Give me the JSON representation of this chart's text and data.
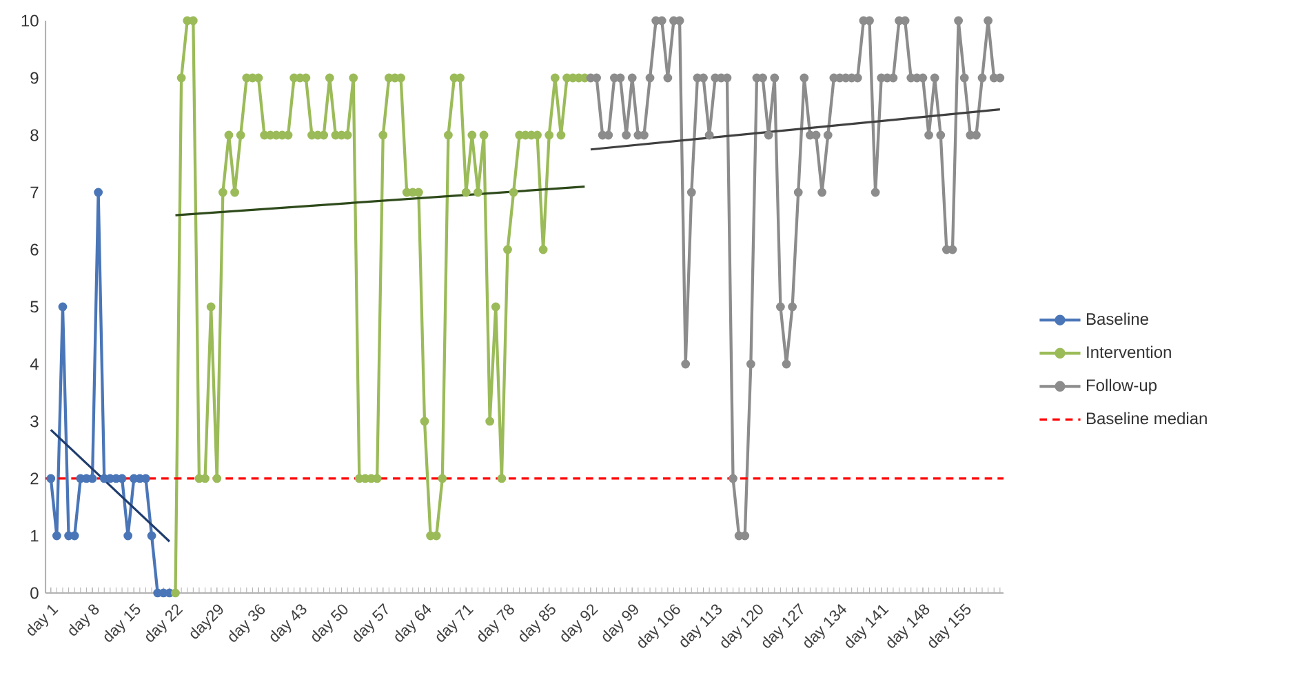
{
  "chart_data": {
    "type": "line",
    "categories": [
      "day 1",
      null,
      null,
      null,
      null,
      null,
      null,
      "day 8",
      null,
      null,
      null,
      null,
      null,
      null,
      "day 15",
      null,
      null,
      null,
      null,
      null,
      null,
      "day 22",
      null,
      null,
      null,
      null,
      null,
      null,
      "day29",
      null,
      null,
      null,
      null,
      null,
      null,
      "day 36",
      null,
      null,
      null,
      null,
      null,
      null,
      "day 43",
      null,
      null,
      null,
      null,
      null,
      null,
      "day 50",
      null,
      null,
      null,
      null,
      null,
      null,
      "day 57",
      null,
      null,
      null,
      null,
      null,
      null,
      "day 64",
      null,
      null,
      null,
      null,
      null,
      null,
      "day 71",
      null,
      null,
      null,
      null,
      null,
      null,
      "day 78",
      null,
      null,
      null,
      null,
      null,
      null,
      "day 85",
      null,
      null,
      null,
      null,
      null,
      null,
      "day 92",
      null,
      null,
      null,
      null,
      null,
      null,
      "day 99",
      null,
      null,
      null,
      null,
      null,
      null,
      "day 106",
      null,
      null,
      null,
      null,
      null,
      null,
      "day 113",
      null,
      null,
      null,
      null,
      null,
      null,
      "day 120",
      null,
      null,
      null,
      null,
      null,
      null,
      "day 127",
      null,
      null,
      null,
      null,
      null,
      null,
      "day 134",
      null,
      null,
      null,
      null,
      null,
      null,
      "day 141",
      null,
      null,
      null,
      null,
      null,
      null,
      "day 148",
      null,
      null,
      null,
      null,
      null,
      null,
      "day 155",
      null,
      null,
      null,
      null,
      null,
      null
    ],
    "series": [
      {
        "name": "Baseline",
        "color": "#4a76b8",
        "values": [
          2,
          1,
          5,
          1,
          1,
          2,
          2,
          2,
          7,
          2,
          2,
          2,
          2,
          1,
          2,
          2,
          2,
          1,
          0,
          0,
          0,
          null,
          null,
          null,
          null,
          null,
          null,
          null,
          null,
          null,
          null,
          null,
          null,
          null,
          null,
          null,
          null,
          null,
          null,
          null,
          null,
          null,
          null,
          null,
          null,
          null,
          null,
          null,
          null,
          null,
          null,
          null,
          null,
          null,
          null,
          null,
          null,
          null,
          null,
          null,
          null,
          null,
          null,
          null,
          null,
          null,
          null,
          null,
          null,
          null,
          null,
          null,
          null,
          null,
          null,
          null,
          null,
          null,
          null,
          null,
          null,
          null,
          null,
          null,
          null,
          null,
          null,
          null,
          null,
          null,
          null,
          null,
          null,
          null,
          null,
          null,
          null,
          null,
          null,
          null,
          null,
          null,
          null,
          null,
          null,
          null,
          null,
          null,
          null,
          null,
          null,
          null,
          null,
          null,
          null,
          null,
          null,
          null,
          null,
          null,
          null,
          null,
          null,
          null,
          null,
          null,
          null,
          null,
          null,
          null,
          null,
          null,
          null,
          null,
          null,
          null,
          null,
          null,
          null,
          null,
          null,
          null,
          null,
          null,
          null,
          null,
          null,
          null,
          null,
          null,
          null,
          null,
          null,
          null,
          null,
          null,
          null,
          null,
          null,
          null,
          null
        ]
      },
      {
        "name": "Intervention",
        "color": "#9bbb59",
        "values": [
          null,
          null,
          null,
          null,
          null,
          null,
          null,
          null,
          null,
          null,
          null,
          null,
          null,
          null,
          null,
          null,
          null,
          null,
          null,
          null,
          null,
          0,
          9,
          10,
          10,
          2,
          2,
          5,
          2,
          7,
          8,
          7,
          8,
          9,
          9,
          9,
          8,
          8,
          8,
          8,
          8,
          9,
          9,
          9,
          8,
          8,
          8,
          9,
          8,
          8,
          8,
          9,
          2,
          2,
          2,
          2,
          8,
          9,
          9,
          9,
          7,
          7,
          7,
          3,
          1,
          1,
          2,
          8,
          9,
          9,
          7,
          8,
          7,
          8,
          3,
          5,
          2,
          6,
          7,
          8,
          8,
          8,
          8,
          6,
          8,
          9,
          8,
          9,
          9,
          9,
          9,
          null,
          null,
          null,
          null,
          null,
          null,
          null,
          null,
          null,
          null,
          null,
          null,
          null,
          null,
          null,
          null,
          null,
          null,
          null,
          null,
          null,
          null,
          null,
          null,
          null,
          null,
          null,
          null,
          null,
          null,
          null,
          null,
          null,
          null,
          null,
          null,
          null,
          null,
          null,
          null,
          null,
          null,
          null,
          null,
          null,
          null,
          null,
          null,
          null,
          null,
          null,
          null,
          null,
          null,
          null,
          null,
          null,
          null,
          null,
          null,
          null,
          null,
          null,
          null,
          null,
          null,
          null,
          null,
          null,
          null
        ]
      },
      {
        "name": "Follow-up",
        "color": "#8c8c8c",
        "values": [
          null,
          null,
          null,
          null,
          null,
          null,
          null,
          null,
          null,
          null,
          null,
          null,
          null,
          null,
          null,
          null,
          null,
          null,
          null,
          null,
          null,
          null,
          null,
          null,
          null,
          null,
          null,
          null,
          null,
          null,
          null,
          null,
          null,
          null,
          null,
          null,
          null,
          null,
          null,
          null,
          null,
          null,
          null,
          null,
          null,
          null,
          null,
          null,
          null,
          null,
          null,
          null,
          null,
          null,
          null,
          null,
          null,
          null,
          null,
          null,
          null,
          null,
          null,
          null,
          null,
          null,
          null,
          null,
          null,
          null,
          null,
          null,
          null,
          null,
          null,
          null,
          null,
          null,
          null,
          null,
          null,
          null,
          null,
          null,
          null,
          null,
          null,
          null,
          null,
          null,
          null,
          9,
          9,
          8,
          8,
          9,
          9,
          8,
          9,
          8,
          8,
          9,
          10,
          10,
          9,
          10,
          10,
          4,
          7,
          9,
          9,
          8,
          9,
          9,
          9,
          2,
          1,
          1,
          4,
          9,
          9,
          8,
          9,
          5,
          4,
          5,
          7,
          9,
          8,
          8,
          7,
          8,
          9,
          9,
          9,
          9,
          9,
          10,
          10,
          7,
          9,
          9,
          9,
          10,
          10,
          9,
          9,
          9,
          8,
          9,
          8,
          6,
          6,
          10,
          9,
          8,
          8,
          9,
          10,
          9,
          9
        ]
      },
      {
        "type": "line",
        "marker": "none",
        "color": "#1f3c6e",
        "values": [
          2.85,
          null,
          null,
          null,
          null,
          null,
          null,
          null,
          null,
          null,
          null,
          null,
          null,
          null,
          null,
          null,
          null,
          null,
          null,
          null,
          0.9,
          null,
          null,
          null,
          null,
          null,
          null,
          null,
          null,
          null,
          null,
          null,
          null,
          null,
          null,
          null,
          null,
          null,
          null,
          null,
          null,
          null,
          null,
          null,
          null,
          null,
          null,
          null,
          null,
          null,
          null,
          null,
          null,
          null,
          null,
          null,
          null,
          null,
          null,
          null,
          null,
          null,
          null,
          null,
          null,
          null,
          null,
          null,
          null,
          null,
          null,
          null,
          null,
          null,
          null,
          null,
          null,
          null,
          null,
          null,
          null,
          null,
          null,
          null,
          null,
          null,
          null,
          null,
          null,
          null,
          null,
          null,
          null,
          null,
          null,
          null,
          null,
          null,
          null,
          null,
          null,
          null,
          null,
          null,
          null,
          null,
          null,
          null,
          null,
          null,
          null,
          null,
          null,
          null,
          null,
          null,
          null,
          null,
          null,
          null,
          null,
          null,
          null,
          null,
          null,
          null,
          null,
          null,
          null,
          null,
          null,
          null,
          null,
          null,
          null,
          null,
          null,
          null,
          null,
          null,
          null,
          null,
          null,
          null,
          null,
          null,
          null,
          null,
          null,
          null,
          null,
          null,
          null,
          null,
          null,
          null,
          null,
          null,
          null,
          null,
          null
        ]
      },
      {
        "type": "line",
        "marker": "none",
        "color": "#2e4a1a",
        "values": [
          null,
          null,
          null,
          null,
          null,
          null,
          null,
          null,
          null,
          null,
          null,
          null,
          null,
          null,
          null,
          null,
          null,
          null,
          null,
          null,
          null,
          6.6,
          null,
          null,
          null,
          null,
          null,
          null,
          null,
          null,
          null,
          null,
          null,
          null,
          null,
          null,
          null,
          null,
          null,
          null,
          null,
          null,
          null,
          null,
          null,
          null,
          null,
          null,
          null,
          null,
          null,
          null,
          null,
          null,
          null,
          null,
          null,
          null,
          null,
          null,
          null,
          null,
          null,
          null,
          null,
          null,
          null,
          null,
          null,
          null,
          null,
          null,
          null,
          null,
          null,
          null,
          null,
          null,
          null,
          null,
          null,
          null,
          null,
          null,
          null,
          null,
          null,
          null,
          null,
          null,
          7.1,
          null,
          null,
          null,
          null,
          null,
          null,
          null,
          null,
          null,
          null,
          null,
          null,
          null,
          null,
          null,
          null,
          null,
          null,
          null,
          null,
          null,
          null,
          null,
          null,
          null,
          null,
          null,
          null,
          null,
          null,
          null,
          null,
          null,
          null,
          null,
          null,
          null,
          null,
          null,
          null,
          null,
          null,
          null,
          null,
          null,
          null,
          null,
          null,
          null,
          null,
          null,
          null,
          null,
          null,
          null,
          null,
          null,
          null,
          null,
          null,
          null,
          null,
          null,
          null,
          null,
          null,
          null,
          null,
          null,
          null
        ]
      },
      {
        "type": "line",
        "marker": "none",
        "color": "#404040",
        "values": [
          null,
          null,
          null,
          null,
          null,
          null,
          null,
          null,
          null,
          null,
          null,
          null,
          null,
          null,
          null,
          null,
          null,
          null,
          null,
          null,
          null,
          null,
          null,
          null,
          null,
          null,
          null,
          null,
          null,
          null,
          null,
          null,
          null,
          null,
          null,
          null,
          null,
          null,
          null,
          null,
          null,
          null,
          null,
          null,
          null,
          null,
          null,
          null,
          null,
          null,
          null,
          null,
          null,
          null,
          null,
          null,
          null,
          null,
          null,
          null,
          null,
          null,
          null,
          null,
          null,
          null,
          null,
          null,
          null,
          null,
          null,
          null,
          null,
          null,
          null,
          null,
          null,
          null,
          null,
          null,
          null,
          null,
          null,
          null,
          null,
          null,
          null,
          null,
          null,
          null,
          null,
          7.75,
          null,
          null,
          null,
          null,
          null,
          null,
          null,
          null,
          null,
          null,
          null,
          null,
          null,
          null,
          null,
          null,
          null,
          null,
          null,
          null,
          null,
          null,
          null,
          null,
          null,
          null,
          null,
          null,
          null,
          null,
          null,
          null,
          null,
          null,
          null,
          null,
          null,
          null,
          null,
          null,
          null,
          null,
          null,
          null,
          null,
          null,
          null,
          null,
          null,
          null,
          null,
          null,
          null,
          null,
          null,
          null,
          null,
          null,
          null,
          null,
          null,
          null,
          null,
          null,
          null,
          null,
          null,
          null,
          8.45
        ]
      }
    ],
    "ref_lines": [
      {
        "axis": "y",
        "value": 2,
        "label": "Baseline median",
        "color": "#ff0000",
        "line_style": "dashed"
      }
    ],
    "ylim": [
      0,
      10
    ],
    "yticks": [
      0,
      1,
      2,
      3,
      4,
      5,
      6,
      7,
      8,
      9,
      10
    ],
    "marker": "circle",
    "line_style": "solid",
    "legend": "right"
  }
}
